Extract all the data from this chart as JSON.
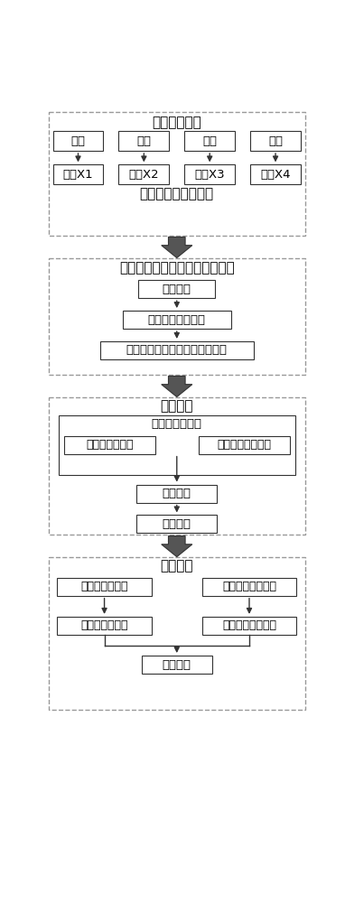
{
  "bg_color": "#ffffff",
  "border_color": "#333333",
  "dashed_border_color": "#999999",
  "box_fill": "#ffffff",
  "text_color": "#000000",
  "font_size": 9.5,
  "title_font_size": 11,
  "arrow_color": "#333333",
  "fig_width": 3.82,
  "fig_height": 10.0,
  "s1_title": "在线监测数据",
  "s1_top_boxes": [
    "流量",
    "温度",
    "压力",
    "液位"
  ],
  "s1_bot_boxes": [
    "集合X1",
    "集合X2",
    "集合X3",
    "集合X4"
  ],
  "s1_footer": "过程监控数据预处理",
  "s2_title": "基于特征参数的异常点检测模型",
  "s2_steps": [
    "特征提取",
    "特征空间建模分析",
    "依据检测函数判断是否为异常点"
  ],
  "s3_title": "异常处理",
  "s3_inner": "异常点统计分类",
  "s3_two": [
    "可恢复性异常点",
    "不可恢复性异常点"
  ],
  "s3_steps": [
    "报警警示",
    "预防维修"
  ],
  "s4_title": "异常验证",
  "s4_top": [
    "可恢复性异常点",
    "不可恢复性异常点"
  ],
  "s4_bot": [
    "误差异常值验证",
    "检定装置检定验证"
  ],
  "s4_footer": "验证结果"
}
